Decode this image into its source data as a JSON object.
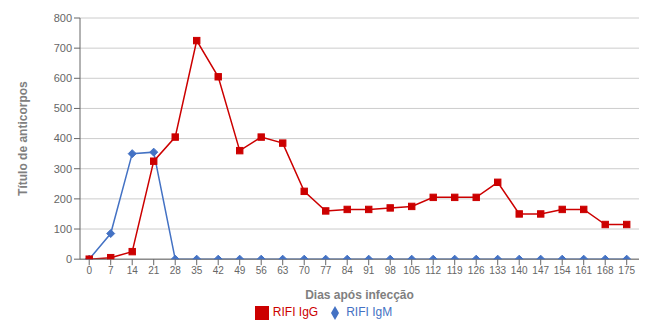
{
  "chart_data": {
    "type": "line",
    "x": [
      0,
      7,
      14,
      21,
      28,
      35,
      42,
      49,
      56,
      63,
      70,
      77,
      84,
      91,
      98,
      105,
      112,
      119,
      126,
      133,
      140,
      147,
      154,
      161,
      168,
      175
    ],
    "series": [
      {
        "name": "RIFI IgM",
        "color": "#4472c4",
        "marker": "diamond",
        "values": [
          0,
          85,
          350,
          355,
          0,
          0,
          0,
          0,
          0,
          0,
          0,
          0,
          0,
          0,
          0,
          0,
          0,
          0,
          0,
          0,
          0,
          0,
          0,
          0,
          0,
          0
        ]
      },
      {
        "name": "RIFI IgG",
        "color": "#cc0000",
        "marker": "square",
        "values": [
          0,
          5,
          25,
          325,
          405,
          725,
          605,
          360,
          405,
          385,
          225,
          160,
          165,
          165,
          170,
          175,
          205,
          205,
          205,
          255,
          150,
          150,
          165,
          165,
          115,
          115
        ]
      }
    ],
    "xlabel": "Dias após infecção",
    "ylabel": "Título de anticorpos",
    "xlim": [
      -3,
      179
    ],
    "xticks": [
      0,
      7,
      14,
      21,
      28,
      35,
      42,
      49,
      56,
      63,
      70,
      77,
      84,
      91,
      98,
      105,
      112,
      119,
      126,
      133,
      140,
      147,
      154,
      161,
      168,
      175
    ],
    "ylim": [
      0,
      800
    ],
    "yticks": [
      0,
      100,
      200,
      300,
      400,
      500,
      600,
      700,
      800
    ],
    "grid": true,
    "legend": "bottom"
  }
}
